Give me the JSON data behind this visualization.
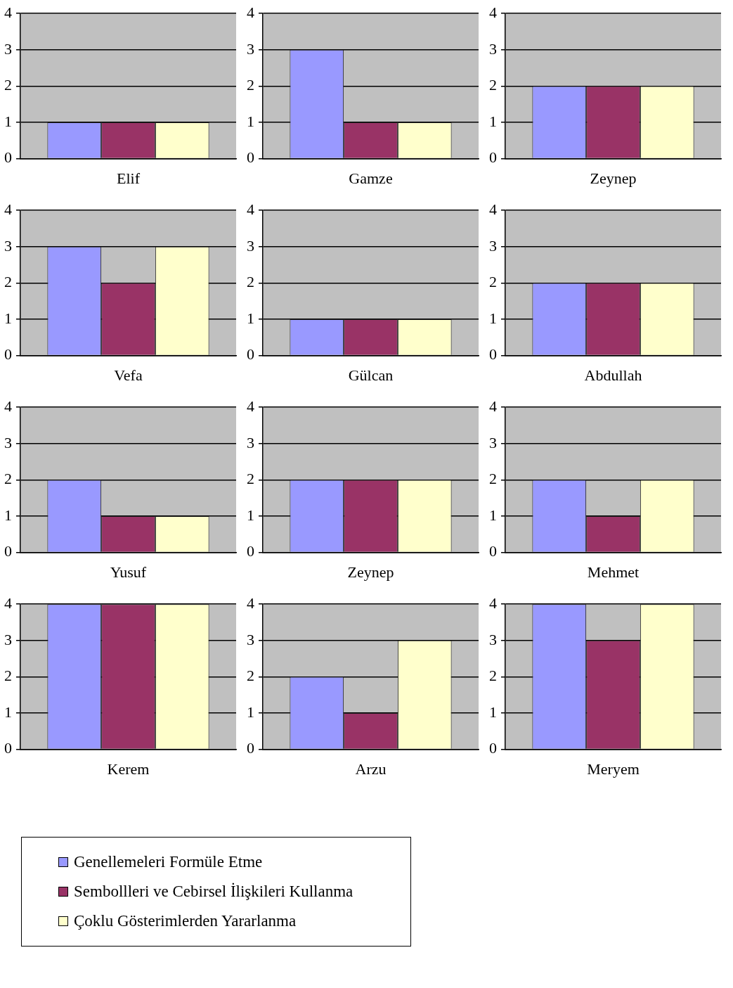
{
  "chart_data": [
    {
      "type": "bar",
      "categories": [
        null
      ],
      "xlabel": "Elif",
      "ylim": [
        0,
        4
      ],
      "yticks": [
        0,
        1,
        2,
        3,
        4
      ],
      "grid": "y",
      "legend": "bottom",
      "series": [
        {
          "name": "Genellemeleri Formüle Etme",
          "color": "#9999ff",
          "values": [
            1
          ]
        },
        {
          "name": "Sembollleri ve Cebirsel İlişkileri Kullanma",
          "color": "#993366",
          "values": [
            1
          ]
        },
        {
          "name": "Çoklu Gösterimlerden Yararlanma",
          "color": "#ffffcc",
          "values": [
            1
          ]
        }
      ]
    },
    {
      "type": "bar",
      "categories": [
        null
      ],
      "xlabel": "Gamze",
      "ylim": [
        0,
        4
      ],
      "yticks": [
        0,
        1,
        2,
        3,
        4
      ],
      "grid": "y",
      "series": [
        {
          "color": "#9999ff",
          "values": [
            3
          ]
        },
        {
          "color": "#993366",
          "values": [
            1
          ]
        },
        {
          "color": "#ffffcc",
          "values": [
            1
          ]
        }
      ]
    },
    {
      "type": "bar",
      "categories": [
        null
      ],
      "xlabel": "Zeynep",
      "ylim": [
        0,
        4
      ],
      "yticks": [
        0,
        1,
        2,
        3,
        4
      ],
      "grid": "y",
      "series": [
        {
          "color": "#9999ff",
          "values": [
            2
          ]
        },
        {
          "color": "#993366",
          "values": [
            2
          ]
        },
        {
          "color": "#ffffcc",
          "values": [
            2
          ]
        }
      ]
    },
    {
      "type": "bar",
      "categories": [
        null
      ],
      "xlabel": "Vefa",
      "ylim": [
        0,
        4
      ],
      "yticks": [
        0,
        1,
        2,
        3,
        4
      ],
      "grid": "y",
      "series": [
        {
          "color": "#9999ff",
          "values": [
            3
          ]
        },
        {
          "color": "#993366",
          "values": [
            2
          ]
        },
        {
          "color": "#ffffcc",
          "values": [
            3
          ]
        }
      ]
    },
    {
      "type": "bar",
      "categories": [
        null
      ],
      "xlabel": "Gülcan",
      "ylim": [
        0,
        4
      ],
      "yticks": [
        0,
        1,
        2,
        3,
        4
      ],
      "grid": "y",
      "series": [
        {
          "color": "#9999ff",
          "values": [
            1
          ]
        },
        {
          "color": "#993366",
          "values": [
            1
          ]
        },
        {
          "color": "#ffffcc",
          "values": [
            1
          ]
        }
      ]
    },
    {
      "type": "bar",
      "categories": [
        null
      ],
      "xlabel": "Abdullah",
      "ylim": [
        0,
        4
      ],
      "yticks": [
        0,
        1,
        2,
        3,
        4
      ],
      "grid": "y",
      "series": [
        {
          "color": "#9999ff",
          "values": [
            2
          ]
        },
        {
          "color": "#993366",
          "values": [
            2
          ]
        },
        {
          "color": "#ffffcc",
          "values": [
            2
          ]
        }
      ]
    },
    {
      "type": "bar",
      "categories": [
        null
      ],
      "xlabel": "Yusuf",
      "ylim": [
        0,
        4
      ],
      "yticks": [
        0,
        1,
        2,
        3,
        4
      ],
      "grid": "y",
      "series": [
        {
          "color": "#9999ff",
          "values": [
            2
          ]
        },
        {
          "color": "#993366",
          "values": [
            1
          ]
        },
        {
          "color": "#ffffcc",
          "values": [
            1
          ]
        }
      ]
    },
    {
      "type": "bar",
      "categories": [
        null
      ],
      "xlabel": "Zeynep",
      "ylim": [
        0,
        4
      ],
      "yticks": [
        0,
        1,
        2,
        3,
        4
      ],
      "grid": "y",
      "series": [
        {
          "color": "#9999ff",
          "values": [
            2
          ]
        },
        {
          "color": "#993366",
          "values": [
            2
          ]
        },
        {
          "color": "#ffffcc",
          "values": [
            2
          ]
        }
      ]
    },
    {
      "type": "bar",
      "categories": [
        null
      ],
      "xlabel": "Mehmet",
      "ylim": [
        0,
        4
      ],
      "yticks": [
        0,
        1,
        2,
        3,
        4
      ],
      "grid": "y",
      "series": [
        {
          "color": "#9999ff",
          "values": [
            2
          ]
        },
        {
          "color": "#993366",
          "values": [
            1
          ]
        },
        {
          "color": "#ffffcc",
          "values": [
            2
          ]
        }
      ]
    },
    {
      "type": "bar",
      "categories": [
        null
      ],
      "xlabel": "Kerem",
      "ylim": [
        0,
        4
      ],
      "yticks": [
        0,
        1,
        2,
        3,
        4
      ],
      "grid": "y",
      "series": [
        {
          "color": "#9999ff",
          "values": [
            4
          ]
        },
        {
          "color": "#993366",
          "values": [
            4
          ]
        },
        {
          "color": "#ffffcc",
          "values": [
            4
          ]
        }
      ]
    },
    {
      "type": "bar",
      "categories": [
        null
      ],
      "xlabel": "Arzu",
      "ylim": [
        0,
        4
      ],
      "yticks": [
        0,
        1,
        2,
        3,
        4
      ],
      "grid": "y",
      "series": [
        {
          "color": "#9999ff",
          "values": [
            2
          ]
        },
        {
          "color": "#993366",
          "values": [
            1
          ]
        },
        {
          "color": "#ffffcc",
          "values": [
            3
          ]
        }
      ]
    },
    {
      "type": "bar",
      "categories": [
        null
      ],
      "xlabel": "Meryem",
      "ylim": [
        0,
        4
      ],
      "yticks": [
        0,
        1,
        2,
        3,
        4
      ],
      "grid": "y",
      "series": [
        {
          "color": "#9999ff",
          "values": [
            4
          ]
        },
        {
          "color": "#993366",
          "values": [
            3
          ]
        },
        {
          "color": "#ffffcc",
          "values": [
            4
          ]
        }
      ]
    }
  ]
}
